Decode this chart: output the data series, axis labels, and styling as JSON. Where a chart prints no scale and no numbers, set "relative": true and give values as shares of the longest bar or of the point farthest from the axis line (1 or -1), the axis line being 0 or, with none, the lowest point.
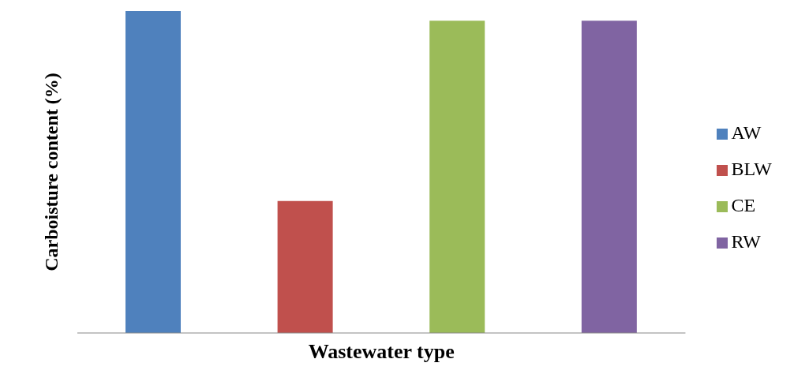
{
  "chart_data": {
    "type": "bar",
    "relative": true,
    "xlabel": "Wastewater type",
    "ylabel": "Carboisture   content (%)",
    "categories": [
      null,
      null,
      null,
      null
    ],
    "stacked": true,
    "legend": "right",
    "series": [
      {
        "name": "AW",
        "color": "#4f81bd",
        "values": [
          1,
          null,
          null,
          null
        ]
      },
      {
        "name": "BLW",
        "color": "#c0504d",
        "values": [
          null,
          0.41,
          null,
          null
        ]
      },
      {
        "name": "CE",
        "color": "#9bbb59",
        "values": [
          null,
          null,
          0.97,
          null
        ]
      },
      {
        "name": "RW",
        "color": "#8064a2",
        "values": [
          null,
          null,
          null,
          0.97
        ]
      }
    ]
  }
}
